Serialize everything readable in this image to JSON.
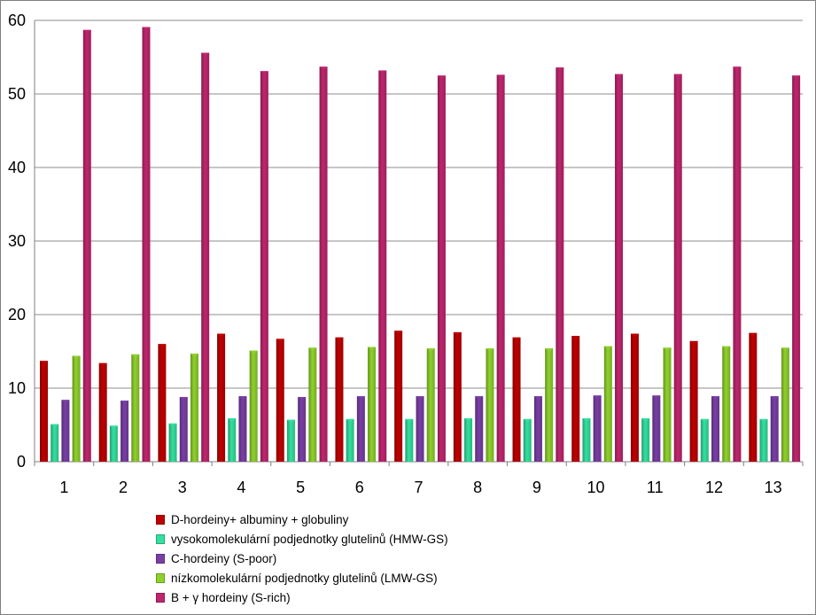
{
  "chart_data": {
    "type": "bar",
    "categories": [
      "1",
      "2",
      "3",
      "4",
      "5",
      "6",
      "7",
      "8",
      "9",
      "10",
      "11",
      "12",
      "13"
    ],
    "ylim": [
      0,
      60
    ],
    "yticks": [
      0,
      10,
      20,
      30,
      40,
      50,
      60
    ],
    "grid": true,
    "legend_position": "bottom",
    "series": [
      {
        "name": "D-hordeiny+ albuminy + globuliny",
        "color": "#c00000",
        "values": [
          13.7,
          13.4,
          16.0,
          17.4,
          16.7,
          16.9,
          17.8,
          17.6,
          16.9,
          17.1,
          17.4,
          16.4,
          17.5
        ]
      },
      {
        "name": "vysokomolekulární podjednotky glutelinů (HMW-GS)",
        "color": "#33e0a0",
        "values": [
          5.1,
          4.9,
          5.2,
          5.9,
          5.7,
          5.8,
          5.8,
          5.9,
          5.8,
          5.9,
          5.9,
          5.8,
          5.8
        ]
      },
      {
        "name": "C-hordeiny  (S-poor)",
        "color": "#7a3fa6",
        "values": [
          8.4,
          8.3,
          8.8,
          8.9,
          8.8,
          8.9,
          8.9,
          8.9,
          8.9,
          9.0,
          9.0,
          8.9,
          8.9
        ]
      },
      {
        "name": "nízkomolekulární podjednotky glutelinů (LMW-GS)",
        "color": "#8fd12c",
        "values": [
          14.4,
          14.6,
          14.7,
          15.1,
          15.5,
          15.6,
          15.4,
          15.4,
          15.4,
          15.7,
          15.5,
          15.7,
          15.5
        ]
      },
      {
        "name": "B + γ hordeiny (S-rich)",
        "color": "#c0266e",
        "values": [
          58.7,
          59.1,
          55.6,
          53.1,
          53.7,
          53.2,
          52.5,
          52.6,
          53.6,
          52.7,
          52.7,
          53.7,
          52.5
        ]
      }
    ]
  }
}
